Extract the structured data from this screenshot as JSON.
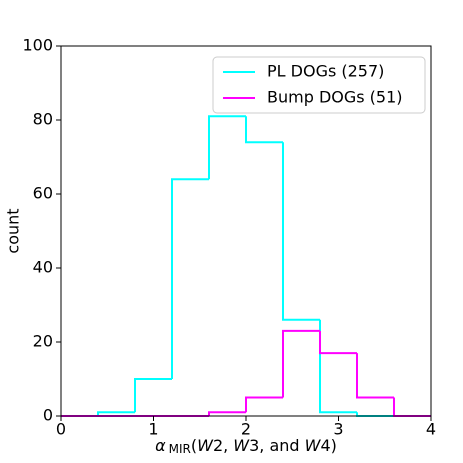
{
  "chart_data": {
    "type": "histogram",
    "xlabel": [
      {
        "text": "α",
        "style": "italic"
      },
      {
        "text": "MIR",
        "style": "sub"
      },
      {
        "text": "(",
        "style": "normal"
      },
      {
        "text": "W",
        "style": "italic"
      },
      {
        "text": "2, ",
        "style": "normal"
      },
      {
        "text": "W",
        "style": "italic"
      },
      {
        "text": "3, and ",
        "style": "normal"
      },
      {
        "text": "W",
        "style": "italic"
      },
      {
        "text": "4)",
        "style": "normal"
      }
    ],
    "ylabel": "count",
    "bins": [
      0,
      0.4,
      0.8,
      1.2,
      1.6,
      2.0,
      2.4,
      2.8,
      3.2,
      3.6,
      4.0
    ],
    "series": [
      {
        "name": "PL DOGs (257)",
        "color": "#00ffff",
        "values": [
          0,
          1,
          10,
          64,
          81,
          74,
          26,
          1,
          0,
          0
        ]
      },
      {
        "name": "Bump DOGs (51)",
        "color": "#ff00ff",
        "values": [
          0,
          0,
          0,
          0,
          1,
          5,
          23,
          17,
          5,
          0
        ]
      }
    ],
    "xlim": [
      0,
      4
    ],
    "xticks": [
      0,
      1,
      2,
      3,
      4
    ],
    "ylim": [
      0,
      100
    ],
    "yticks": [
      0,
      20,
      40,
      60,
      80,
      100
    ],
    "grid": false,
    "legend": "upper right"
  }
}
